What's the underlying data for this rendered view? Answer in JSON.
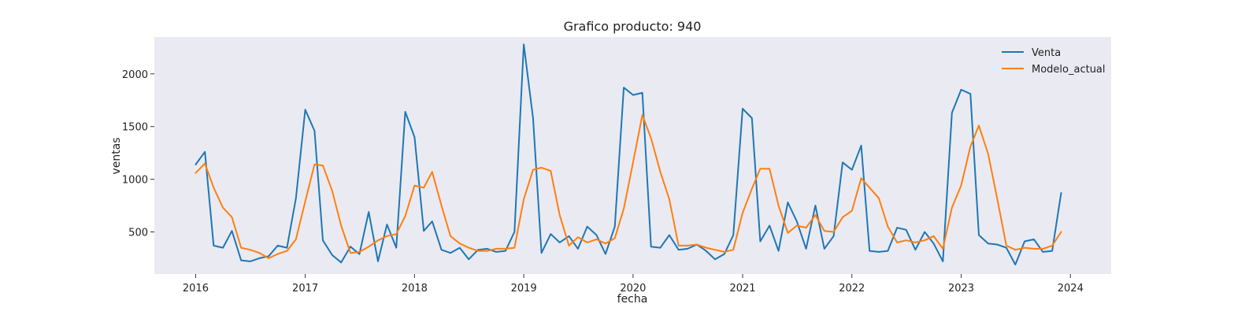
{
  "chart_data": {
    "type": "line",
    "title": "Grafico producto: 940",
    "xlabel": "fecha",
    "ylabel": "ventas",
    "xlim": [
      "2015-08-16",
      "2024-05-16"
    ],
    "ylim": [
      100,
      2350
    ],
    "x_ticks": [
      "2016",
      "2017",
      "2018",
      "2019",
      "2020",
      "2021",
      "2022",
      "2023",
      "2024"
    ],
    "y_ticks": [
      500,
      1000,
      1500,
      2000
    ],
    "grid": false,
    "legend": "top-right",
    "x": [
      "2016-01",
      "2016-02",
      "2016-03",
      "2016-04",
      "2016-05",
      "2016-06",
      "2016-07",
      "2016-08",
      "2016-09",
      "2016-10",
      "2016-11",
      "2016-12",
      "2017-01",
      "2017-02",
      "2017-03",
      "2017-04",
      "2017-05",
      "2017-06",
      "2017-07",
      "2017-08",
      "2017-09",
      "2017-10",
      "2017-11",
      "2017-12",
      "2018-01",
      "2018-02",
      "2018-03",
      "2018-04",
      "2018-05",
      "2018-06",
      "2018-07",
      "2018-08",
      "2018-09",
      "2018-10",
      "2018-11",
      "2018-12",
      "2019-01",
      "2019-02",
      "2019-03",
      "2019-04",
      "2019-05",
      "2019-06",
      "2019-07",
      "2019-08",
      "2019-09",
      "2019-10",
      "2019-11",
      "2019-12",
      "2020-01",
      "2020-02",
      "2020-03",
      "2020-04",
      "2020-05",
      "2020-06",
      "2020-07",
      "2020-08",
      "2020-09",
      "2020-10",
      "2020-11",
      "2020-12",
      "2021-01",
      "2021-02",
      "2021-03",
      "2021-04",
      "2021-05",
      "2021-06",
      "2021-07",
      "2021-08",
      "2021-09",
      "2021-10",
      "2021-11",
      "2021-12",
      "2022-01",
      "2022-02",
      "2022-03",
      "2022-04",
      "2022-05",
      "2022-06",
      "2022-07",
      "2022-08",
      "2022-09",
      "2022-10",
      "2022-11",
      "2022-12",
      "2023-01",
      "2023-02",
      "2023-03",
      "2023-04",
      "2023-05",
      "2023-06",
      "2023-07",
      "2023-08",
      "2023-09",
      "2023-10",
      "2023-11",
      "2023-12"
    ],
    "series": [
      {
        "name": "Venta",
        "color": "#1f77b4",
        "values": [
          1140,
          1260,
          370,
          350,
          510,
          230,
          220,
          250,
          270,
          370,
          350,
          820,
          1660,
          1460,
          420,
          280,
          210,
          360,
          290,
          690,
          220,
          570,
          350,
          1640,
          1400,
          510,
          600,
          330,
          300,
          350,
          240,
          330,
          340,
          310,
          320,
          500,
          2280,
          1580,
          300,
          480,
          400,
          460,
          340,
          550,
          470,
          290,
          550,
          1870,
          1800,
          1820,
          360,
          350,
          470,
          330,
          340,
          380,
          320,
          240,
          290,
          470,
          1670,
          1580,
          410,
          560,
          320,
          780,
          600,
          340,
          750,
          340,
          460,
          1160,
          1090,
          1320,
          320,
          310,
          320,
          540,
          520,
          330,
          500,
          390,
          220,
          1630,
          1850,
          1810,
          470,
          390,
          380,
          350,
          190,
          410,
          430,
          310,
          320,
          870
        ]
      },
      {
        "name": "Modelo_actual",
        "color": "#ff7f0e",
        "values": [
          1060,
          1150,
          920,
          730,
          640,
          350,
          330,
          300,
          250,
          290,
          320,
          430,
          790,
          1140,
          1130,
          890,
          560,
          300,
          310,
          360,
          420,
          460,
          480,
          650,
          940,
          920,
          1070,
          750,
          460,
          390,
          350,
          320,
          320,
          340,
          340,
          350,
          810,
          1090,
          1110,
          1080,
          660,
          370,
          450,
          400,
          430,
          390,
          440,
          720,
          1160,
          1610,
          1390,
          1070,
          810,
          370,
          370,
          380,
          350,
          330,
          310,
          330,
          680,
          910,
          1100,
          1100,
          750,
          490,
          560,
          540,
          660,
          510,
          500,
          640,
          700,
          1010,
          920,
          820,
          550,
          400,
          420,
          400,
          420,
          460,
          340,
          730,
          940,
          1310,
          1510,
          1240,
          820,
          370,
          330,
          350,
          340,
          340,
          370,
          500
        ]
      }
    ]
  }
}
